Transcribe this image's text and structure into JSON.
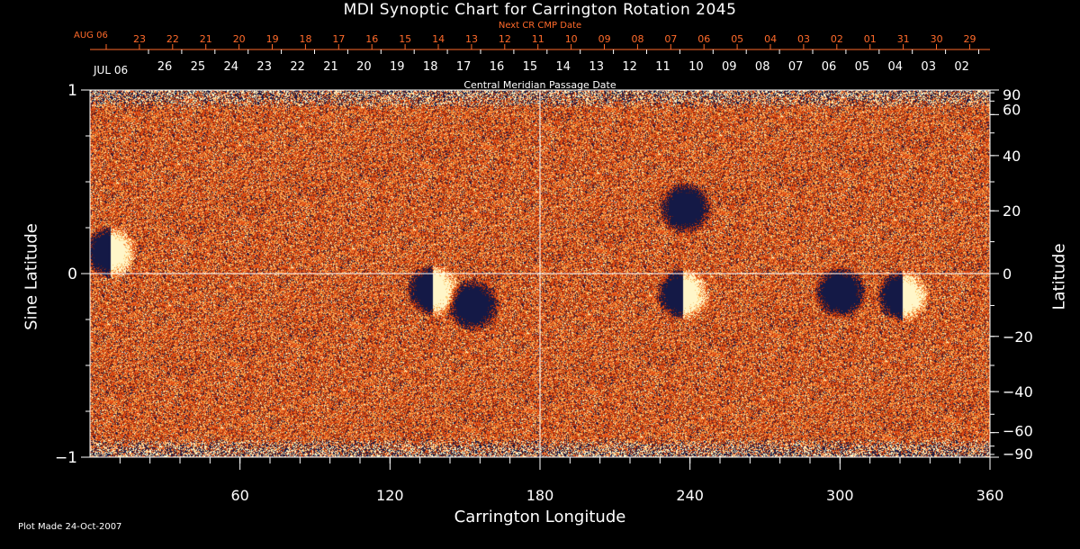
{
  "title": "MDI Synoptic Chart for Carrington Rotation 2045",
  "next_cr_label": "Next CR CMP Date",
  "cmp_label": "Central Meridian Passage Date",
  "footer": "Plot Made 24-Oct-2007",
  "colors": {
    "background": "#000000",
    "axis": "#ffffff",
    "next_cr_text": "#ff6a2a",
    "map_base": "#e8501a",
    "positive_polarity": "#fff6c0",
    "negative_polarity": "#101a40"
  },
  "chart_data": {
    "type": "heatmap",
    "title": "MDI Synoptic Chart for Carrington Rotation 2045",
    "xlabel": "Carrington Longitude",
    "ylabel_left": "Sine Latitude",
    "ylabel_right": "Latitude",
    "xlim": [
      0,
      360
    ],
    "ylim_sine": [
      -1,
      1
    ],
    "x_ticks": [
      60,
      120,
      180,
      240,
      300,
      360
    ],
    "y_left_ticks": [
      {
        "v": 1,
        "label": "1"
      },
      {
        "v": 0,
        "label": "0"
      },
      {
        "v": -1,
        "label": "−1"
      }
    ],
    "y_right_ticks_deg": [
      90,
      60,
      40,
      20,
      0,
      -20,
      -40,
      -60,
      -90
    ],
    "y_right_tick_labels": [
      "90",
      "60",
      "40",
      "20",
      "0",
      "−20",
      "−40",
      "−60",
      "−90"
    ],
    "grid_lines": {
      "vertical_at_longitude": 180,
      "horizontal_at_sine_lat": 0
    },
    "next_cr_start_label": "AUG 06",
    "next_cr_dates": [
      "23",
      "22",
      "21",
      "20",
      "19",
      "18",
      "17",
      "16",
      "15",
      "14",
      "13",
      "12",
      "11",
      "10",
      "09",
      "08",
      "07",
      "06",
      "05",
      "04",
      "03",
      "02",
      "01",
      "31",
      "30",
      "29"
    ],
    "cmp_start_label": "JUL 06",
    "cmp_dates": [
      "26",
      "25",
      "24",
      "23",
      "22",
      "21",
      "20",
      "19",
      "18",
      "17",
      "16",
      "15",
      "14",
      "13",
      "12",
      "11",
      "10",
      "09",
      "08",
      "07",
      "06",
      "05",
      "04",
      "03",
      "02"
    ],
    "active_regions": [
      {
        "lon": 8,
        "sinlat": 0.12,
        "polarity": "bipolar"
      },
      {
        "lon": 137,
        "sinlat": -0.09,
        "polarity": "bipolar"
      },
      {
        "lon": 153,
        "sinlat": -0.17,
        "polarity": "negative"
      },
      {
        "lon": 237,
        "sinlat": -0.11,
        "polarity": "bipolar"
      },
      {
        "lon": 300,
        "sinlat": -0.1,
        "polarity": "negative"
      },
      {
        "lon": 325,
        "sinlat": -0.12,
        "polarity": "bipolar"
      },
      {
        "lon": 238,
        "sinlat": 0.36,
        "polarity": "negative"
      }
    ]
  }
}
